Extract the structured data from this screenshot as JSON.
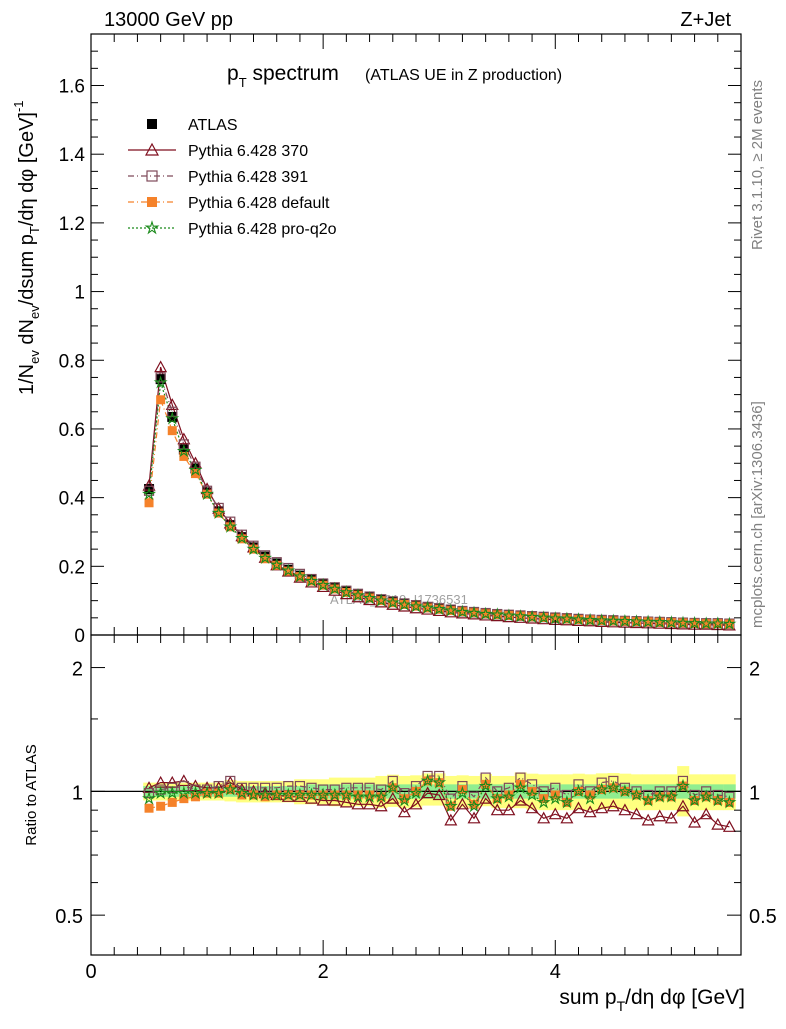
{
  "header": {
    "energy_label": "13000 GeV pp",
    "process_label": "Z+Jet",
    "side_rivet": "Rivet 3.1.10, ≥ 2M events",
    "side_site": "mcplots.cern.ch [arXiv:1306.3436]",
    "watermark": "ATLAS_2019_I1736531"
  },
  "chart_data": [
    {
      "type": "scatter",
      "title_main": "p_T spectrum",
      "title_sub": "(ATLAS UE in Z production)",
      "ylabel": "1/N_ev dN_ev/dsum p_T/dη dφ [GeV]^-1",
      "xlim": [
        0,
        5.6
      ],
      "ylim": [
        0,
        1.75
      ],
      "yticks": [
        0,
        0.2,
        0.4,
        0.6,
        0.8,
        1,
        1.2,
        1.4,
        1.6
      ],
      "ytick_labels": [
        "0",
        "0.2",
        "0.4",
        "0.6",
        "0.8",
        "1",
        "1.2",
        "1.4",
        "1.6"
      ],
      "legend_position": "top-left",
      "x": [
        0.5,
        0.6,
        0.7,
        0.8,
        0.9,
        1.0,
        1.1,
        1.2,
        1.3,
        1.4,
        1.5,
        1.6,
        1.7,
        1.8,
        1.9,
        2.0,
        2.1,
        2.2,
        2.3,
        2.4,
        2.5,
        2.6,
        2.7,
        2.8,
        2.9,
        3.0,
        3.1,
        3.2,
        3.3,
        3.4,
        3.5,
        3.6,
        3.7,
        3.8,
        3.9,
        4.0,
        4.1,
        4.2,
        4.3,
        4.4,
        4.5,
        4.6,
        4.7,
        4.8,
        4.9,
        5.0,
        5.1,
        5.2,
        5.3,
        5.4,
        5.5
      ],
      "series": [
        {
          "name": "ATLAS",
          "color": "#000000",
          "marker": "filled-square",
          "values": [
            0.425,
            0.745,
            0.635,
            0.54,
            0.485,
            0.415,
            0.36,
            0.32,
            0.285,
            0.255,
            0.228,
            0.208,
            0.19,
            0.173,
            0.16,
            0.148,
            0.137,
            0.127,
            0.118,
            0.11,
            0.103,
            0.096,
            0.091,
            0.086,
            0.081,
            0.077,
            0.073,
            0.069,
            0.066,
            0.063,
            0.06,
            0.058,
            0.056,
            0.054,
            0.052,
            0.05,
            0.048,
            0.046,
            0.045,
            0.043,
            0.042,
            0.041,
            0.04,
            0.039,
            0.038,
            0.037,
            0.036,
            0.035,
            0.034,
            0.034,
            0.033
          ]
        },
        {
          "name": "Pythia 6.428 370",
          "color": "#7f0f1f",
          "marker": "open-triangle",
          "values": [
            0.435,
            0.78,
            0.67,
            0.57,
            0.5,
            0.425,
            0.368,
            0.325,
            0.288,
            0.255,
            0.225,
            0.203,
            0.185,
            0.167,
            0.153,
            0.14,
            0.129,
            0.119,
            0.11,
            0.102,
            0.095,
            0.088,
            0.083,
            0.078,
            0.074,
            0.07,
            0.066,
            0.063,
            0.06,
            0.057,
            0.055,
            0.052,
            0.05,
            0.048,
            0.046,
            0.044,
            0.043,
            0.041,
            0.04,
            0.038,
            0.037,
            0.036,
            0.035,
            0.034,
            0.033,
            0.032,
            0.031,
            0.03,
            0.03,
            0.029,
            0.028
          ]
        },
        {
          "name": "Pythia 6.428 391",
          "color": "#7f4a5a",
          "marker": "open-square",
          "values": [
            0.42,
            0.75,
            0.65,
            0.555,
            0.49,
            0.42,
            0.37,
            0.33,
            0.292,
            0.26,
            0.232,
            0.212,
            0.195,
            0.178,
            0.163,
            0.15,
            0.139,
            0.129,
            0.12,
            0.112,
            0.104,
            0.098,
            0.092,
            0.087,
            0.082,
            0.078,
            0.074,
            0.07,
            0.067,
            0.064,
            0.061,
            0.059,
            0.057,
            0.055,
            0.053,
            0.051,
            0.049,
            0.047,
            0.045,
            0.044,
            0.043,
            0.041,
            0.04,
            0.039,
            0.038,
            0.037,
            0.036,
            0.035,
            0.034,
            0.034,
            0.033
          ]
        },
        {
          "name": "Pythia 6.428 default",
          "color": "#f5822a",
          "marker": "filled-square",
          "values": [
            0.385,
            0.685,
            0.595,
            0.52,
            0.47,
            0.41,
            0.355,
            0.315,
            0.28,
            0.25,
            0.222,
            0.203,
            0.186,
            0.17,
            0.157,
            0.145,
            0.134,
            0.124,
            0.116,
            0.108,
            0.1,
            0.094,
            0.089,
            0.084,
            0.079,
            0.075,
            0.071,
            0.068,
            0.065,
            0.062,
            0.059,
            0.057,
            0.055,
            0.053,
            0.051,
            0.049,
            0.047,
            0.045,
            0.044,
            0.042,
            0.041,
            0.04,
            0.039,
            0.038,
            0.037,
            0.036,
            0.035,
            0.034,
            0.033,
            0.033,
            0.032
          ]
        },
        {
          "name": "Pythia 6.428 pro-q2o",
          "color": "#1a8a1a",
          "marker": "open-star",
          "values": [
            0.41,
            0.735,
            0.63,
            0.535,
            0.48,
            0.41,
            0.355,
            0.315,
            0.282,
            0.25,
            0.224,
            0.204,
            0.187,
            0.17,
            0.157,
            0.145,
            0.134,
            0.124,
            0.115,
            0.107,
            0.1,
            0.094,
            0.088,
            0.083,
            0.079,
            0.075,
            0.071,
            0.067,
            0.064,
            0.061,
            0.059,
            0.056,
            0.054,
            0.052,
            0.05,
            0.048,
            0.047,
            0.045,
            0.043,
            0.042,
            0.041,
            0.04,
            0.039,
            0.038,
            0.037,
            0.036,
            0.035,
            0.034,
            0.033,
            0.033,
            0.032
          ]
        }
      ]
    },
    {
      "type": "scatter",
      "ylabel": "Ratio to ATLAS",
      "xlabel": "sum p_T/dη dφ [GeV]",
      "xlim": [
        0,
        5.6
      ],
      "ylim": [
        0.4,
        2.4
      ],
      "y_scale": "log",
      "xticks": [
        0,
        2,
        4
      ],
      "xtick_labels": [
        "0",
        "2",
        "4"
      ],
      "yticks": [
        0.5,
        1,
        2
      ],
      "ytick_labels": [
        "0.5",
        "1",
        "2"
      ],
      "band_inner_halfwidth": [
        0.03,
        0.03,
        0.03,
        0.03,
        0.03,
        0.03,
        0.03,
        0.03,
        0.03,
        0.03,
        0.03,
        0.03,
        0.03,
        0.03,
        0.04,
        0.04,
        0.04,
        0.04,
        0.04,
        0.04,
        0.04,
        0.04,
        0.04,
        0.04,
        0.04,
        0.04,
        0.04,
        0.04,
        0.04,
        0.04,
        0.04,
        0.04,
        0.04,
        0.04,
        0.04,
        0.04,
        0.04,
        0.04,
        0.04,
        0.04,
        0.04,
        0.04,
        0.04,
        0.04,
        0.04,
        0.04,
        0.04,
        0.04,
        0.04,
        0.04,
        0.04
      ],
      "band_outer_halfwidth": [
        0.05,
        0.05,
        0.05,
        0.05,
        0.05,
        0.05,
        0.05,
        0.06,
        0.06,
        0.06,
        0.06,
        0.06,
        0.06,
        0.07,
        0.07,
        0.07,
        0.08,
        0.08,
        0.08,
        0.08,
        0.09,
        0.09,
        0.09,
        0.09,
        0.09,
        0.09,
        0.09,
        0.09,
        0.09,
        0.09,
        0.09,
        0.09,
        0.1,
        0.1,
        0.1,
        0.1,
        0.1,
        0.1,
        0.1,
        0.1,
        0.1,
        0.1,
        0.1,
        0.1,
        0.1,
        0.1,
        0.14,
        0.1,
        0.1,
        0.1,
        0.1
      ],
      "series": [
        {
          "name": "Pythia 6.428 370",
          "values": [
            1.02,
            1.05,
            1.05,
            1.06,
            1.03,
            1.02,
            1.02,
            1.02,
            1.01,
            1.0,
            0.99,
            0.98,
            0.97,
            0.97,
            0.96,
            0.95,
            0.95,
            0.94,
            0.93,
            0.93,
            0.92,
            0.92,
            0.91,
            0.91,
            0.91,
            0.9,
            0.9,
            0.91,
            0.91,
            0.9,
            0.92,
            0.9,
            0.89,
            0.89,
            0.88,
            0.88,
            0.9,
            0.89,
            0.89,
            0.88,
            0.88,
            0.88,
            0.88,
            0.87,
            0.87,
            0.86,
            0.86,
            0.86,
            0.88,
            0.85,
            0.85
          ]
        },
        {
          "name": "Pythia 6.428 391",
          "values": [
            0.99,
            1.01,
            1.02,
            1.03,
            1.01,
            1.01,
            1.03,
            1.03,
            1.02,
            1.02,
            1.02,
            1.02,
            1.03,
            1.03,
            1.02,
            1.01,
            1.01,
            1.02,
            1.02,
            1.02,
            1.01,
            1.02,
            1.01,
            1.01,
            1.01,
            1.01,
            1.01,
            1.01,
            1.02,
            1.02,
            1.02,
            1.02,
            1.02,
            1.02,
            1.02,
            1.02,
            1.02,
            1.02,
            1.0,
            1.02,
            1.02,
            1.0,
            1.0,
            1.0,
            1.0,
            1.0,
            1.0,
            1.0,
            1.0,
            1.0,
            1.0
          ]
        },
        {
          "name": "Pythia 6.428 default",
          "values": [
            0.91,
            0.92,
            0.94,
            0.96,
            0.97,
            0.99,
            0.99,
            0.98,
            0.98,
            0.98,
            0.97,
            0.98,
            0.98,
            0.98,
            0.98,
            0.98,
            0.98,
            0.98,
            0.98,
            0.98,
            0.97,
            0.98,
            0.98,
            0.98,
            0.98,
            0.97,
            0.97,
            0.99,
            0.98,
            0.98,
            0.98,
            0.98,
            0.98,
            0.98,
            0.98,
            0.98,
            0.98,
            0.98,
            0.98,
            0.98,
            0.98,
            0.98,
            0.98,
            0.97,
            0.97,
            0.97,
            0.97,
            0.97,
            0.97,
            0.97,
            0.97
          ]
        },
        {
          "name": "Pythia 6.428 pro-q2o",
          "values": [
            0.96,
            0.99,
            0.99,
            0.99,
            0.99,
            0.99,
            0.99,
            0.98,
            0.99,
            0.98,
            0.98,
            0.98,
            0.98,
            0.98,
            0.98,
            0.98,
            0.98,
            0.98,
            0.97,
            0.97,
            0.97,
            0.98,
            0.97,
            0.97,
            0.98,
            0.97,
            0.97,
            0.97,
            0.97,
            0.97,
            0.98,
            0.97,
            0.96,
            0.96,
            0.96,
            0.96,
            0.98,
            0.98,
            0.96,
            0.98,
            0.98,
            0.98,
            0.98,
            0.97,
            0.97,
            0.97,
            0.97,
            0.97,
            0.97,
            0.97,
            0.97
          ]
        }
      ],
      "wiggle": [
        0,
        0,
        0,
        0,
        0,
        0,
        0,
        0.03,
        0,
        0,
        0,
        0,
        0,
        0,
        0,
        0,
        0,
        0,
        0,
        0,
        0,
        0.04,
        -0.02,
        0.02,
        0.08,
        0.08,
        -0.05,
        0.02,
        -0.05,
        0.06,
        -0.02,
        0,
        0.06,
        0.02,
        -0.02,
        0,
        -0.04,
        0.02,
        0,
        0.03,
        0.04,
        0.02,
        0,
        -0.02,
        0,
        0,
        0.06,
        -0.02,
        0,
        -0.02,
        -0.03
      ]
    }
  ]
}
